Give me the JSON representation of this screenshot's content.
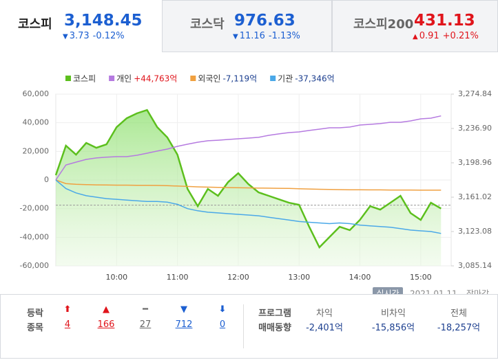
{
  "tabs": [
    {
      "name": "코스피",
      "value": "3,148.45",
      "arrow": "▼",
      "change": "3.73",
      "rate": "-0.12%",
      "color": "#1c5fd1"
    },
    {
      "name": "코스닥",
      "value": "976.63",
      "arrow": "▼",
      "change": "11.16",
      "rate": "-1.13%",
      "color": "#1c5fd1"
    },
    {
      "name": "코스피200",
      "value": "431.13",
      "arrow": "▲",
      "change": "0.91",
      "rate": "+0.21%",
      "color": "#e0141b"
    }
  ],
  "chart": {
    "type": "line",
    "x": [
      "09:00",
      "09:10",
      "09:20",
      "09:30",
      "09:40",
      "09:50",
      "10:00",
      "10:10",
      "10:20",
      "10:30",
      "10:40",
      "10:50",
      "11:00",
      "11:10",
      "11:20",
      "11:30",
      "11:40",
      "11:50",
      "12:00",
      "12:10",
      "12:20",
      "12:30",
      "12:40",
      "12:50",
      "13:00",
      "13:10",
      "13:20",
      "13:30",
      "13:40",
      "13:50",
      "14:00",
      "14:10",
      "14:20",
      "14:30",
      "14:40",
      "14:50",
      "15:00",
      "15:10",
      "15:20"
    ],
    "xlim": [
      "09:00",
      "15:30"
    ],
    "xticks": [
      "10:00",
      "11:00",
      "12:00",
      "13:00",
      "14:00",
      "15:00"
    ],
    "ylim": [
      -60000,
      60000
    ],
    "yticks": [
      {
        "value": 60000,
        "label": "60,000"
      },
      {
        "value": 40000,
        "label": "40,000"
      },
      {
        "value": 20000,
        "label": "20,000"
      },
      0,
      {
        "value": -20000,
        "label": "-20,000"
      },
      {
        "value": -40000,
        "label": "-40,000"
      },
      {
        "value": -60000,
        "label": "-60,000"
      }
    ],
    "y2lim": [
      3085.14,
      3274.84
    ],
    "y2ticks": [
      {
        "value": 3274.84,
        "label": "3,274.84"
      },
      {
        "value": 3236.9,
        "label": "3,236.90"
      },
      {
        "value": 3198.96,
        "label": "3,198.96"
      },
      {
        "value": 3161.02,
        "label": "3,161.02"
      },
      {
        "value": 3123.08,
        "label": "3,123.08"
      },
      {
        "value": 3085.14,
        "label": "3,085.14"
      }
    ],
    "reference_line": 3152.18,
    "series": [
      {
        "name": "코스피",
        "color": "#5cbf1d",
        "axis": "y2",
        "values": [
          3185.3,
          3217.9,
          3208.0,
          3221.0,
          3215.6,
          3219.4,
          3238.4,
          3248.2,
          3253.6,
          3257.3,
          3238.4,
          3227.0,
          3208.0,
          3170.1,
          3151.1,
          3170.1,
          3162.5,
          3177.7,
          3187.5,
          3175.4,
          3166.3,
          3162.5,
          3158.7,
          3154.9,
          3152.6,
          3128.3,
          3105.6,
          3117.0,
          3128.3,
          3124.6,
          3135.9,
          3151.1,
          3147.3,
          3154.9,
          3162.5,
          3143.5,
          3135.9,
          3154.9,
          3148.5
        ]
      },
      {
        "name": "개인",
        "total": "+44,763억",
        "total_color": "#e0141b",
        "color": "#b57ae0",
        "values": [
          0,
          10500,
          12500,
          14400,
          15400,
          16000,
          16300,
          16300,
          17300,
          18700,
          20200,
          21600,
          23500,
          25000,
          26400,
          27400,
          27800,
          28300,
          28800,
          29300,
          29800,
          31200,
          32200,
          33100,
          33600,
          34600,
          35500,
          36500,
          36500,
          37000,
          38400,
          38900,
          39400,
          40300,
          40300,
          41300,
          42700,
          43200,
          44763
        ]
      },
      {
        "name": "외국인",
        "total": "-7,119억",
        "total_color": "#1c3f8f",
        "color": "#f0a040",
        "values": [
          0,
          -2500,
          -3000,
          -3200,
          -3400,
          -3500,
          -3600,
          -3600,
          -3700,
          -3700,
          -3800,
          -4000,
          -4200,
          -4500,
          -4800,
          -5000,
          -5200,
          -5300,
          -5400,
          -5500,
          -5600,
          -5700,
          -5800,
          -5900,
          -6100,
          -6300,
          -6500,
          -6600,
          -6700,
          -6800,
          -6800,
          -6900,
          -6900,
          -7000,
          -7000,
          -7000,
          -7100,
          -7100,
          -7119
        ]
      },
      {
        "name": "기관",
        "total": "-37,346억",
        "total_color": "#1c3f8f",
        "color": "#4aa8e8",
        "values": [
          0,
          -6000,
          -9000,
          -11000,
          -12000,
          -13000,
          -13500,
          -14000,
          -14500,
          -15000,
          -15000,
          -15500,
          -17000,
          -20000,
          -21500,
          -22500,
          -23000,
          -23500,
          -24000,
          -24500,
          -25000,
          -26000,
          -27000,
          -28000,
          -29000,
          -29500,
          -30000,
          -30500,
          -30000,
          -30500,
          -31500,
          -32000,
          -32500,
          -33000,
          -34000,
          -35000,
          -35500,
          -36000,
          -37346
        ]
      }
    ]
  },
  "status": {
    "button": "실시간",
    "date": "2021.01.11",
    "session": "장마감"
  },
  "breadth": {
    "label": [
      "등락",
      "종목"
    ],
    "items": [
      {
        "symbol": "⬆",
        "count": 4,
        "color": "#e0141b"
      },
      {
        "symbol": "▲",
        "count": 166,
        "color": "#e0141b"
      },
      {
        "symbol": "━",
        "count": 27,
        "color": "#666666"
      },
      {
        "symbol": "▼",
        "count": 712,
        "color": "#1c5fd1"
      },
      {
        "symbol": "⬇",
        "count": 0,
        "color": "#1c5fd1"
      }
    ]
  },
  "program": {
    "label": [
      "프로그램",
      "매매동향"
    ],
    "columns": [
      {
        "name": "차익",
        "value": "-2,401억"
      },
      {
        "name": "비차익",
        "value": "-15,856억"
      },
      {
        "name": "전체",
        "value": "-18,257억"
      }
    ]
  }
}
